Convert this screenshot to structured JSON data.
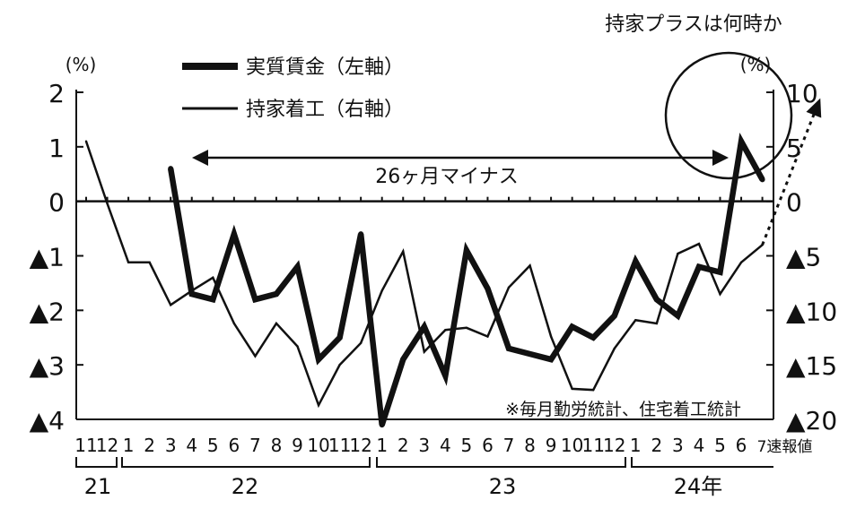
{
  "chart_data": {
    "type": "line",
    "annotation_title": "持家プラスは何時か",
    "range_label": "26ヶ月マイナス",
    "source_note": "※毎月勤労統計、住宅着工統計",
    "unit_left": "(%)",
    "unit_right": "(%)",
    "left_axis": {
      "ylim": [
        -4,
        2
      ],
      "tick_labels": [
        "2",
        "1",
        "0",
        "▲1",
        "▲2",
        "▲3",
        "▲4"
      ],
      "tick_values": [
        2,
        1,
        0,
        -1,
        -2,
        -3,
        -4
      ]
    },
    "right_axis": {
      "ylim": [
        -20,
        10
      ],
      "tick_labels": [
        "10",
        "5",
        "0",
        "▲5",
        "▲10",
        "▲15",
        "▲20"
      ],
      "tick_values": [
        10,
        5,
        0,
        -5,
        -10,
        -15,
        -20
      ]
    },
    "x": {
      "month_labels": [
        "11",
        "12",
        "1",
        "2",
        "3",
        "4",
        "5",
        "6",
        "7",
        "8",
        "9",
        "10",
        "11",
        "12",
        "1",
        "2",
        "3",
        "4",
        "5",
        "6",
        "7",
        "8",
        "9",
        "10",
        "11",
        "12",
        "1",
        "2",
        "3",
        "4",
        "5",
        "6",
        "7速報値"
      ],
      "year_labels": [
        "21",
        "22",
        "23",
        "24年"
      ]
    },
    "series": [
      {
        "name": "実質賃金（左軸）",
        "axis": "left",
        "values": [
          null,
          null,
          null,
          null,
          0.6,
          -1.7,
          -1.8,
          -0.6,
          -1.8,
          -1.7,
          -1.2,
          -2.9,
          -2.5,
          -0.6,
          -4.1,
          -2.9,
          -2.3,
          -3.2,
          -0.9,
          -1.6,
          -2.7,
          -2.8,
          -2.9,
          -2.3,
          -2.5,
          -2.1,
          -1.1,
          -1.8,
          -2.1,
          -1.2,
          -1.3,
          1.1,
          0.4
        ]
      },
      {
        "name": "持家着工（右軸）",
        "axis": "right",
        "values": [
          5.5,
          -0.2,
          -5.6,
          -5.6,
          -9.5,
          -8.2,
          -7.0,
          -11.2,
          -14.2,
          -11.2,
          -13.3,
          -18.7,
          -15.0,
          -13.0,
          -8.2,
          -4.6,
          -13.8,
          -11.8,
          -11.6,
          -12.4,
          -7.9,
          -5.9,
          -12.4,
          -17.2,
          -17.3,
          -13.5,
          -10.9,
          -11.2,
          -4.8,
          -3.9,
          -8.5,
          -5.6,
          -4.0
        ]
      }
    ],
    "projection": {
      "from_value": -0.6,
      "to_value": 9.0,
      "style": "dotted-arrow"
    }
  }
}
